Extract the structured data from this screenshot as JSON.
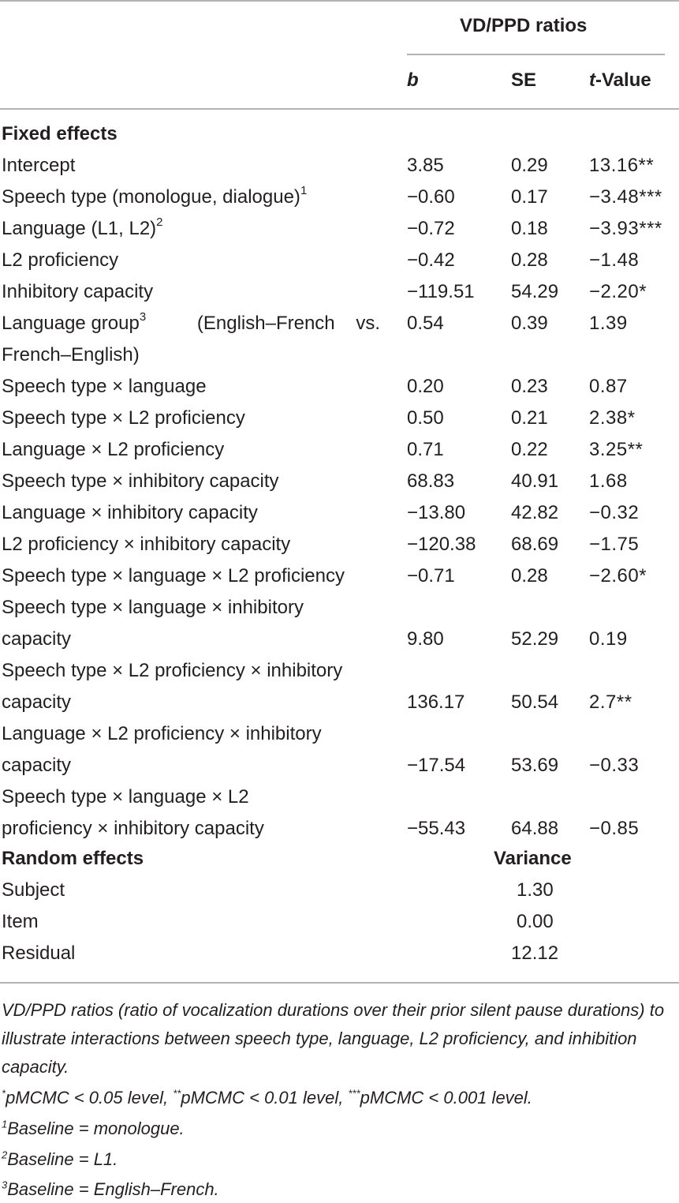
{
  "header": {
    "group_label": "VD/PPD ratios",
    "col_b": "b",
    "col_se": "SE",
    "col_t_italic": "t",
    "col_t_rest": "-Value"
  },
  "fixed_title": "Fixed effects",
  "rows": [
    {
      "label": "Intercept",
      "b": "3.85",
      "se": "0.29",
      "t": "13.16**"
    },
    {
      "label": "Speech type (monologue, dialogue)",
      "sup": "1",
      "b": "−0.60",
      "se": "0.17",
      "t": "−3.48***"
    },
    {
      "label": "Language (L1, L2)",
      "sup": "2",
      "b": "−0.72",
      "se": "0.18",
      "t": "−3.93***"
    },
    {
      "label": "L2 proficiency",
      "b": "−0.42",
      "se": "0.28",
      "t": "−1.48"
    },
    {
      "label": "Inhibitory capacity",
      "b": "−119.51",
      "se": "54.29",
      "t": "−2.20*"
    },
    {
      "label": "Language group",
      "sup": "3",
      "label_rest": "(English–French vs.",
      "label2": "French–English)",
      "b": "0.54",
      "se": "0.39",
      "t": "1.39"
    },
    {
      "label": "Speech type × language",
      "b": "0.20",
      "se": "0.23",
      "t": "0.87"
    },
    {
      "label": "Speech type × L2 proficiency",
      "b": "0.50",
      "se": "0.21",
      "t": "2.38*"
    },
    {
      "label": "Language × L2 proficiency",
      "b": "0.71",
      "se": "0.22",
      "t": "3.25**"
    },
    {
      "label": "Speech type × inhibitory capacity",
      "b": "68.83",
      "se": "40.91",
      "t": "1.68"
    },
    {
      "label": "Language × inhibitory capacity",
      "b": "−13.80",
      "se": "42.82",
      "t": "−0.32"
    },
    {
      "label": "L2 proficiency × inhibitory capacity",
      "b": "−120.38",
      "se": "68.69",
      "t": "−1.75"
    },
    {
      "label": "Speech type × language × L2 proficiency",
      "b": "−0.71",
      "se": "0.28",
      "t": "−2.60*"
    },
    {
      "label": "Speech type × language × inhibitory",
      "label2": "capacity",
      "b": "9.80",
      "se": "52.29",
      "t": "0.19"
    },
    {
      "label": "Speech type × L2 proficiency × inhibitory",
      "label2": "capacity",
      "b": "136.17",
      "se": "50.54",
      "t": "2.7**"
    },
    {
      "label": "Language × L2 proficiency × inhibitory",
      "label2": "capacity",
      "b": "−17.54",
      "se": "53.69",
      "t": "−0.33"
    },
    {
      "label": "Speech type × language × L2",
      "label2": "proficiency ×  inhibitory capacity",
      "b": "−55.43",
      "se": "64.88",
      "t": "−0.85"
    }
  ],
  "random_title": "Random effects",
  "variance_label": "Variance",
  "random_rows": [
    {
      "label": "Subject",
      "value": "1.30"
    },
    {
      "label": "Item",
      "value": "0.00"
    },
    {
      "label": "Residual",
      "value": "12.12"
    }
  ],
  "footnotes": {
    "caption": "VD/PPD ratios (ratio of vocalization durations over their prior silent pause durations) to illustrate interactions between speech type, language, L2 proficiency, and inhibition capacity.",
    "sig": {
      "m1": "*",
      "t1": "pMCMC < 0.05 level, ",
      "m2": "**",
      "t2": "pMCMC < 0.01 level, ",
      "m3": "***",
      "t3": "pMCMC < 0.001 level."
    },
    "notes": [
      {
        "mark": "1",
        "text": "Baseline = monologue."
      },
      {
        "mark": "2",
        "text": "Baseline = L1."
      },
      {
        "mark": "3",
        "text": "Baseline = English–French."
      }
    ]
  }
}
